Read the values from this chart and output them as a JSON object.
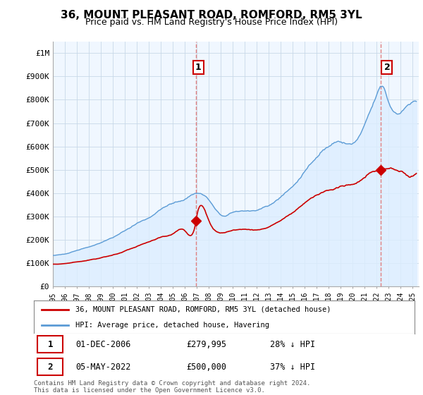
{
  "title": "36, MOUNT PLEASANT ROAD, ROMFORD, RM5 3YL",
  "subtitle": "Price paid vs. HM Land Registry's House Price Index (HPI)",
  "ylabel_values": [
    "£0",
    "£100K",
    "£200K",
    "£300K",
    "£400K",
    "£500K",
    "£600K",
    "£700K",
    "£800K",
    "£900K",
    "£1M"
  ],
  "yticks": [
    0,
    100000,
    200000,
    300000,
    400000,
    500000,
    600000,
    700000,
    800000,
    900000,
    1000000
  ],
  "ylim": [
    0,
    1050000
  ],
  "xlim_start": 1995.0,
  "xlim_end": 2025.5,
  "hpi_color": "#5b9bd5",
  "hpi_fill_color": "#ddeeff",
  "price_color": "#cc0000",
  "marker1_year": 2006.92,
  "marker1_price": 279995,
  "marker1_label": "1",
  "marker2_year": 2022.35,
  "marker2_price": 500000,
  "marker2_label": "2",
  "vline_color": "#e08080",
  "legend_line1": "36, MOUNT PLEASANT ROAD, ROMFORD, RM5 3YL (detached house)",
  "legend_line2": "HPI: Average price, detached house, Havering",
  "footer": "Contains HM Land Registry data © Crown copyright and database right 2024.\nThis data is licensed under the Open Government Licence v3.0.",
  "background_color": "#ffffff",
  "chart_bg_color": "#f0f7ff",
  "grid_color": "#c8d8e8"
}
